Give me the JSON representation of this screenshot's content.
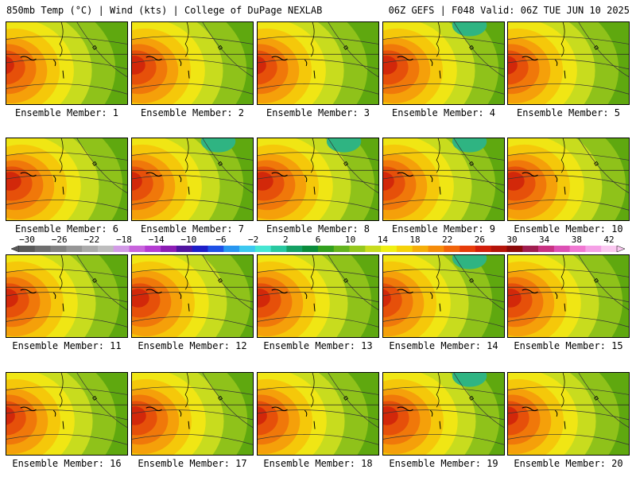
{
  "header": {
    "left": "850mb Temp (°C) | Wind (kts) | College of DuPage NEXLAB",
    "right": "06Z GEFS | F048 Valid: 06Z TUE JUN 10 2025"
  },
  "panels": [
    {
      "label": "Ensemble Member: 1"
    },
    {
      "label": "Ensemble Member: 2"
    },
    {
      "label": "Ensemble Member: 3"
    },
    {
      "label": "Ensemble Member: 4"
    },
    {
      "label": "Ensemble Member: 5"
    },
    {
      "label": "Ensemble Member: 6"
    },
    {
      "label": "Ensemble Member: 7"
    },
    {
      "label": "Ensemble Member: 8"
    },
    {
      "label": "Ensemble Member: 9"
    },
    {
      "label": "Ensemble Member: 10"
    },
    {
      "label": "Ensemble Member: 11"
    },
    {
      "label": "Ensemble Member: 12"
    },
    {
      "label": "Ensemble Member: 13"
    },
    {
      "label": "Ensemble Member: 14"
    },
    {
      "label": "Ensemble Member: 15"
    },
    {
      "label": "Ensemble Member: 16"
    },
    {
      "label": "Ensemble Member: 17"
    },
    {
      "label": "Ensemble Member: 18"
    },
    {
      "label": "Ensemble Member: 19"
    },
    {
      "label": "Ensemble Member: 20"
    }
  ],
  "colorbar": {
    "labels": [
      "−30",
      "−26",
      "−22",
      "−18",
      "−14",
      "−10",
      "−6",
      "−2",
      "2",
      "6",
      "10",
      "14",
      "18",
      "22",
      "26",
      "30",
      "34",
      "38",
      "42"
    ],
    "colors": [
      "#5a5a5a",
      "#6e6e6e",
      "#828282",
      "#969696",
      "#aaaaaa",
      "#bdbdbd",
      "#d29be6",
      "#c864dc",
      "#b43cd2",
      "#8c1eb4",
      "#5014a0",
      "#1e1ec8",
      "#1e50e6",
      "#2896f0",
      "#3cc8f0",
      "#46e6d2",
      "#28c8a0",
      "#14a064",
      "#0a8c3c",
      "#32a01e",
      "#64b41e",
      "#96c81e",
      "#c8dc1e",
      "#f0f014",
      "#f5d20a",
      "#f5af0a",
      "#f58c0a",
      "#f0640a",
      "#e63c0a",
      "#d21e0a",
      "#b4140a",
      "#8c0a0a",
      "#a01e50",
      "#c83282",
      "#dc50b4",
      "#f078d2",
      "#f5a0e6",
      "#fac8f0"
    ]
  }
}
